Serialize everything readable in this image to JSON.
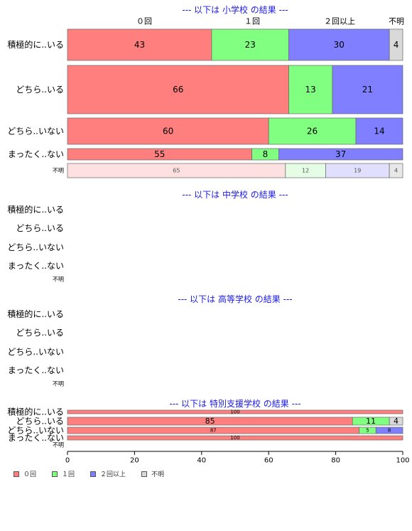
{
  "chart_data": {
    "type": "bar",
    "orientation": "horizontal",
    "stacked": true,
    "xlim": [
      0,
      100
    ],
    "x_ticks": [
      "0",
      "20",
      "40",
      "60",
      "80",
      "100"
    ],
    "column_headers": [
      "０回",
      "１回",
      "２回以上",
      "不明"
    ],
    "series": [
      {
        "name": "０回",
        "color": "#ff7f7f"
      },
      {
        "name": "１回",
        "color": "#80ff80"
      },
      {
        "name": "２回以上",
        "color": "#7f7fff"
      },
      {
        "name": "不明",
        "color": "#d9d9d9"
      }
    ],
    "groups": [
      {
        "title": "--- 以下は 小学校 の結果 ---",
        "rows": [
          {
            "label": "積極的に..いる",
            "values": [
              43,
              23,
              30,
              4
            ]
          },
          {
            "label": "どちら..いる",
            "values": [
              66,
              13,
              21,
              0
            ]
          },
          {
            "label": "どちら..いない",
            "values": [
              60,
              26,
              14,
              0
            ]
          },
          {
            "label": "まったく..ない",
            "values": [
              55,
              8,
              37,
              0
            ]
          },
          {
            "label": "不明",
            "values": [
              65,
              12,
              19,
              4
            ]
          }
        ]
      },
      {
        "title": "--- 以下は 中学校 の結果 ---",
        "rows": [
          {
            "label": "積極的に..いる",
            "values": []
          },
          {
            "label": "どちら..いる",
            "values": []
          },
          {
            "label": "どちら..いない",
            "values": []
          },
          {
            "label": "まったく..ない",
            "values": []
          },
          {
            "label": "不明",
            "values": []
          }
        ]
      },
      {
        "title": "--- 以下は 高等学校 の結果 ---",
        "rows": [
          {
            "label": "積極的に..いる",
            "values": []
          },
          {
            "label": "どちら..いる",
            "values": []
          },
          {
            "label": "どちら..いない",
            "values": []
          },
          {
            "label": "まったく..ない",
            "values": []
          },
          {
            "label": "不明",
            "values": []
          }
        ]
      },
      {
        "title": "--- 以下は 特別支援学校 の結果 ---",
        "rows": [
          {
            "label": "積極的に..いる",
            "values": [
              100,
              0,
              0,
              0
            ]
          },
          {
            "label": "どちら..いる",
            "values": [
              85,
              11,
              0,
              4
            ]
          },
          {
            "label": "どちら..いない",
            "values": [
              87,
              5,
              8,
              0
            ]
          },
          {
            "label": "まったく..ない",
            "values": [
              100,
              0,
              0,
              0
            ]
          },
          {
            "label": "不明",
            "values": []
          }
        ]
      }
    ],
    "legend": {
      "position": "bottom-left",
      "items": [
        "０回",
        "１回",
        "２回以上",
        "不明"
      ]
    }
  }
}
